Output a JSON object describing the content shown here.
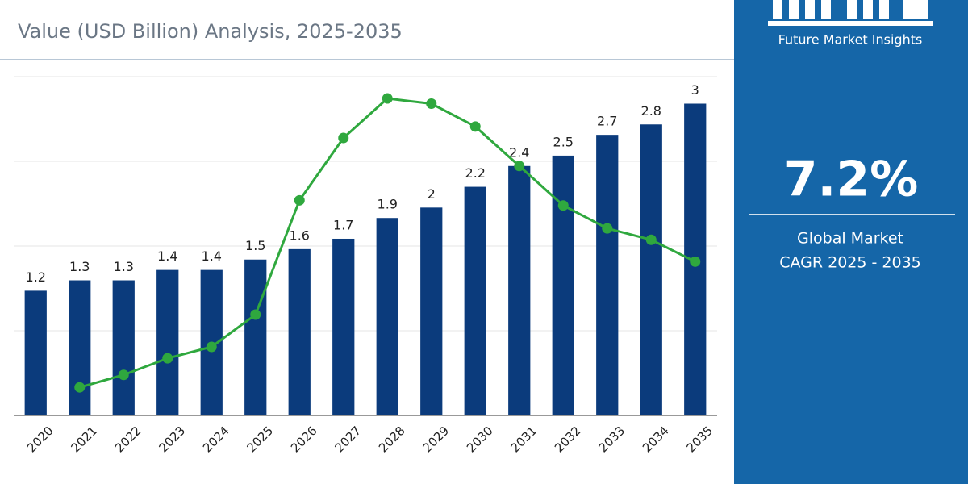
{
  "chart_data": {
    "type": "bar",
    "title": "Value (USD Billion) Analysis, 2025-2035",
    "categories": [
      "2020",
      "2021",
      "2022",
      "2023",
      "2024",
      "2025",
      "2026",
      "2027",
      "2028",
      "2029",
      "2030",
      "2031",
      "2032",
      "2033",
      "2034",
      "2035"
    ],
    "series": [
      {
        "type": "bar",
        "color": "#0b3b7c",
        "values": [
          1.2,
          1.3,
          1.3,
          1.4,
          1.4,
          1.5,
          1.6,
          1.7,
          1.9,
          2,
          2.2,
          2.4,
          2.5,
          2.7,
          2.8,
          3
        ]
      },
      {
        "type": "line",
        "color": "#2fa83e",
        "values": [
          null,
          0.27,
          0.39,
          0.55,
          0.66,
          0.97,
          2.07,
          2.67,
          3.05,
          3.0,
          2.78,
          2.4,
          2.02,
          1.8,
          1.69,
          1.48
        ]
      }
    ],
    "ylim": [
      0,
      3.26
    ],
    "grid": true
  },
  "panel": {
    "brand": "Future Market Insights",
    "cagr": "7.2%",
    "caption_line1": "Global Market",
    "caption_line2": "CAGR 2025 - 2035"
  }
}
